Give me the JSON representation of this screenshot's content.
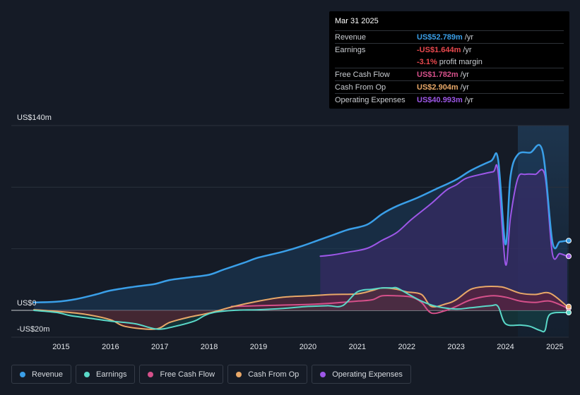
{
  "tooltip": {
    "date": "Mar 31 2025",
    "rows": [
      {
        "label": "Revenue",
        "value": "US$52.789m",
        "unit": "/yr",
        "color": "#3a9fe8"
      },
      {
        "label": "Earnings",
        "value": "-US$1.644m",
        "unit": "/yr",
        "color": "#e8484d"
      },
      {
        "label": "",
        "value": "-3.1%",
        "unit": "profit margin",
        "color": "#e8484d"
      },
      {
        "label": "Free Cash Flow",
        "value": "US$1.782m",
        "unit": "/yr",
        "color": "#d5508a"
      },
      {
        "label": "Cash From Op",
        "value": "US$2.904m",
        "unit": "/yr",
        "color": "#e8a868"
      },
      {
        "label": "Operating Expenses",
        "value": "US$40.993m",
        "unit": "/yr",
        "color": "#9d57e8"
      }
    ]
  },
  "legend": [
    {
      "label": "Revenue",
      "color": "#3a9fe8"
    },
    {
      "label": "Earnings",
      "color": "#5ad8c8"
    },
    {
      "label": "Free Cash Flow",
      "color": "#d5508a"
    },
    {
      "label": "Cash From Op",
      "color": "#e8a868"
    },
    {
      "label": "Operating Expenses",
      "color": "#9d57e8"
    }
  ],
  "chart_data": {
    "type": "line",
    "title": "",
    "y_tick_labels": [
      "US$140m",
      "US$0",
      "-US$20m"
    ],
    "ylim": [
      -20,
      140
    ],
    "x_tick_labels": [
      "2015",
      "2016",
      "2017",
      "2018",
      "2019",
      "2020",
      "2021",
      "2022",
      "2023",
      "2024",
      "2025"
    ],
    "xlim": [
      2014.45,
      2025.28
    ],
    "highlight_start": 2024.25,
    "series": [
      {
        "name": "Revenue",
        "color": "#3a9fe8",
        "x": [
          2014.45,
          2014.9,
          2015.3,
          2015.7,
          2016.0,
          2016.5,
          2016.9,
          2017.2,
          2017.6,
          2018.0,
          2018.3,
          2018.7,
          2019.0,
          2019.5,
          2019.9,
          2020.2,
          2020.5,
          2020.8,
          2021.2,
          2021.5,
          2021.8,
          2022.2,
          2022.6,
          2023.0,
          2023.3,
          2023.7,
          2023.85,
          2024.0,
          2024.1,
          2024.25,
          2024.5,
          2024.75,
          2024.95,
          2025.1,
          2025.25
        ],
        "y": [
          6,
          6.5,
          8.5,
          12,
          15,
          18,
          20,
          23,
          25,
          27,
          31,
          36,
          40,
          44.5,
          49,
          53,
          57,
          61,
          65,
          73,
          79,
          85,
          92,
          99,
          106,
          113,
          114.5,
          50,
          101,
          118,
          119.5,
          120.5,
          52,
          52,
          52.8
        ]
      },
      {
        "name": "Earnings",
        "color": "#5ad8c8",
        "x": [
          2014.45,
          2014.9,
          2015.2,
          2015.6,
          2016.0,
          2016.5,
          2016.95,
          2017.3,
          2017.7,
          2017.9,
          2018.1,
          2018.5,
          2019.0,
          2019.5,
          2020.0,
          2020.4,
          2020.7,
          2021.0,
          2021.3,
          2021.5,
          2021.7,
          2021.8,
          2022.0,
          2022.3,
          2022.6,
          2023.0,
          2023.3,
          2023.7,
          2023.85,
          2024.0,
          2024.3,
          2024.5,
          2024.7,
          2024.8,
          2024.9,
          2025.25
        ],
        "y": [
          0,
          -1.5,
          -4,
          -6,
          -8,
          -10,
          -14,
          -12,
          -8,
          -4,
          -1.5,
          0,
          0.5,
          1.5,
          3,
          3.5,
          3.5,
          14,
          16,
          17,
          17,
          17,
          13,
          7,
          3,
          1,
          2,
          3.5,
          3,
          -10,
          -11,
          -12,
          -15,
          -15,
          -3,
          -1.6
        ]
      },
      {
        "name": "Free Cash Flow",
        "color": "#d5508a",
        "x": [
          2018.45,
          2019.0,
          2019.5,
          2020.0,
          2020.5,
          2021.0,
          2021.3,
          2021.5,
          2021.8,
          2022.1,
          2022.3,
          2022.5,
          2022.8,
          2023.0,
          2023.3,
          2023.7,
          2024.0,
          2024.3,
          2024.6,
          2024.9,
          2025.25
        ],
        "y": [
          3,
          3.5,
          4,
          4.5,
          5.5,
          7,
          8,
          11,
          11,
          10,
          6,
          -2,
          0,
          3,
          8,
          11,
          10,
          7,
          6,
          7,
          1.8
        ]
      },
      {
        "name": "Cash From Op",
        "color": "#e8a868",
        "x": [
          2014.45,
          2015.0,
          2015.5,
          2016.0,
          2016.3,
          2016.9,
          2017.2,
          2017.6,
          2018.0,
          2018.5,
          2019.0,
          2019.5,
          2020.0,
          2020.5,
          2021.0,
          2021.3,
          2021.5,
          2021.8,
          2022.0,
          2022.3,
          2022.5,
          2022.8,
          2023.0,
          2023.3,
          2023.6,
          2023.85,
          2024.0,
          2024.3,
          2024.6,
          2024.9,
          2025.25
        ],
        "y": [
          0.5,
          -1,
          -3,
          -7,
          -12,
          -14,
          -9,
          -5,
          -2,
          3,
          7,
          10,
          11,
          12,
          12.5,
          15,
          17,
          16,
          14,
          12,
          3,
          5,
          8,
          16,
          18,
          18,
          17,
          13,
          12,
          13,
          2.9
        ]
      },
      {
        "name": "Operating Expenses",
        "color": "#9d57e8",
        "x": [
          2020.25,
          2020.5,
          2020.8,
          2021.2,
          2021.5,
          2021.8,
          2022.1,
          2022.5,
          2022.8,
          2023.0,
          2023.2,
          2023.5,
          2023.75,
          2023.85,
          2024.0,
          2024.1,
          2024.25,
          2024.4,
          2024.6,
          2024.8,
          2024.95,
          2025.1,
          2025.25
        ],
        "y": [
          41,
          42,
          44,
          47,
          53,
          59,
          69,
          81,
          91,
          95,
          100,
          103,
          105,
          105,
          35,
          70,
          100,
          103,
          103,
          102,
          43,
          43,
          41
        ]
      }
    ]
  }
}
